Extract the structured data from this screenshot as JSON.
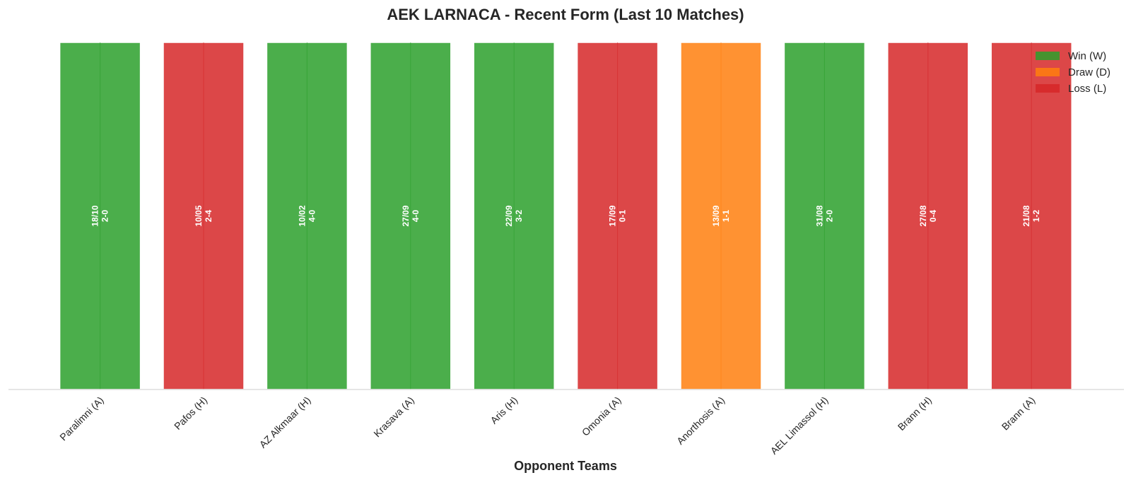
{
  "chart_data": {
    "type": "bar",
    "title": "AEK LARNACA - Recent Form (Last 10 Matches)",
    "xlabel": "Opponent Teams",
    "ylabel": "",
    "ylim": [
      0,
      1
    ],
    "grid": false,
    "legend_placement": "top-right",
    "categories": [
      "Paralimni (A)",
      "Pafos (H)",
      "AZ Alkmaar (H)",
      "Krasava (A)",
      "Aris (H)",
      "Omonia (A)",
      "Anorthosis (A)",
      "AEL Limassol (H)",
      "Brann (H)",
      "Brann (A)"
    ],
    "values": [
      1,
      1,
      1,
      1,
      1,
      1,
      1,
      1,
      1,
      1
    ],
    "results": [
      "W",
      "L",
      "W",
      "W",
      "W",
      "L",
      "D",
      "W",
      "L",
      "L"
    ],
    "dates": [
      "18/10",
      "10/05",
      "10/02",
      "27/09",
      "22/09",
      "17/09",
      "13/09",
      "31/08",
      "27/08",
      "21/08"
    ],
    "scores": [
      "2-0",
      "2-4",
      "4-0",
      "4-0",
      "3-2",
      "0-1",
      "1-1",
      "2-0",
      "0-4",
      "1-2"
    ],
    "legend": [
      {
        "key": "W",
        "label": "Win (W)"
      },
      {
        "key": "D",
        "label": "Draw (D)"
      },
      {
        "key": "L",
        "label": "Loss (L)"
      }
    ],
    "colors": {
      "W": "#2ca02c",
      "D": "#ff7f0e",
      "L": "#d62728",
      "axis": "#dddddd",
      "text": "#262626"
    }
  }
}
